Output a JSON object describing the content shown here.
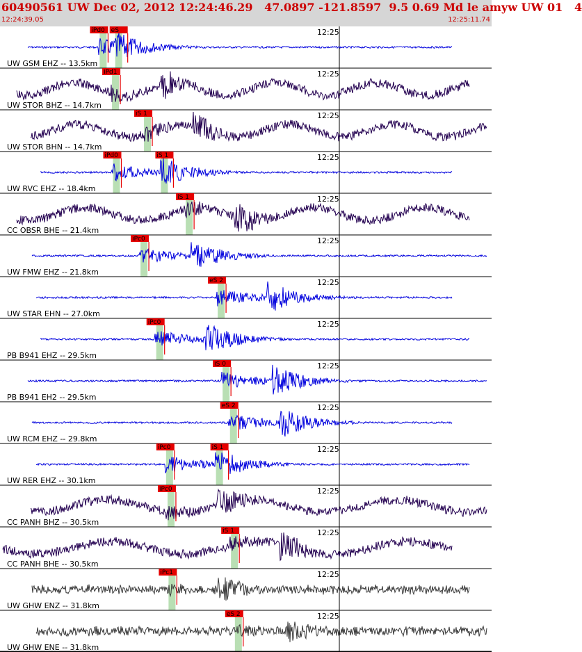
{
  "header": {
    "title": "60490561 UW Dec 02, 2012 12:24:46.29   47.0897 -121.8597  9.5 0.69 Md le amyw UW 01   4",
    "start_time": "12:24:39.05",
    "end_time": "12:25:11.74"
  },
  "colors": {
    "header_bg": "#d6d6d6",
    "title_red": "#cc0000",
    "pick_bg": "#e60000",
    "p_band": "#b9dfb4",
    "blue_trace": "#0000dd",
    "purple_trace": "#230050",
    "gray_trace": "#3a3a3a"
  },
  "time_tick_label": "12:25",
  "traces": [
    {
      "label": "UW GSM EHZ -- 13.5km",
      "color": "blue",
      "picks": [
        {
          "phase": "iPd0",
          "t": 0.2
        },
        {
          "phase": "eS",
          "t": 0.24
        }
      ]
    },
    {
      "label": "UW STOR BHZ -- 14.7km",
      "color": "purple",
      "picks": [
        {
          "phase": "iPd1",
          "t": 0.225
        }
      ]
    },
    {
      "label": "UW STOR BHN -- 14.7km",
      "color": "purple",
      "picks": [
        {
          "phase": "iS 1",
          "t": 0.29
        }
      ]
    },
    {
      "label": "UW RVC EHZ -- 18.4km",
      "color": "blue",
      "picks": [
        {
          "phase": "iPd0",
          "t": 0.227
        },
        {
          "phase": "iS 1",
          "t": 0.333
        }
      ]
    },
    {
      "label": "CC OBSR BHE -- 21.4km",
      "color": "purple",
      "picks": [
        {
          "phase": "iS 1",
          "t": 0.375
        }
      ]
    },
    {
      "label": "UW FMW EHZ -- 21.8km",
      "color": "blue",
      "picks": [
        {
          "phase": "iPc0",
          "t": 0.283
        }
      ]
    },
    {
      "label": "UW STAR EHN -- 27.0km",
      "color": "blue",
      "picks": [
        {
          "phase": "eS 2",
          "t": 0.44
        }
      ]
    },
    {
      "label": "PB B941 EHZ -- 29.5km",
      "color": "blue",
      "picks": [
        {
          "phase": "iPc0",
          "t": 0.315
        }
      ]
    },
    {
      "label": "PB B941 EH2 -- 29.5km",
      "color": "blue",
      "picks": [
        {
          "phase": "iS 0",
          "t": 0.45
        }
      ]
    },
    {
      "label": "UW RCM EHZ -- 29.8km",
      "color": "blue",
      "picks": [
        {
          "phase": "eS 2",
          "t": 0.465
        }
      ]
    },
    {
      "label": "UW RER EHZ -- 30.1km",
      "color": "blue",
      "picks": [
        {
          "phase": "iPc0",
          "t": 0.335
        },
        {
          "phase": "iS 1",
          "t": 0.445
        }
      ]
    },
    {
      "label": "CC PANH BHZ -- 30.5km",
      "color": "purple",
      "picks": [
        {
          "phase": "iPc0",
          "t": 0.338
        }
      ]
    },
    {
      "label": "CC PANH BHE -- 30.5km",
      "color": "purple",
      "picks": [
        {
          "phase": "iS 1",
          "t": 0.467
        }
      ]
    },
    {
      "label": "UW GHW ENZ -- 31.8km",
      "color": "gray",
      "picks": [
        {
          "phase": "iPc1",
          "t": 0.34
        }
      ]
    },
    {
      "label": "UW GHW ENE -- 31.8km",
      "color": "gray",
      "picks": [
        {
          "phase": "eS 2",
          "t": 0.475
        }
      ]
    }
  ]
}
